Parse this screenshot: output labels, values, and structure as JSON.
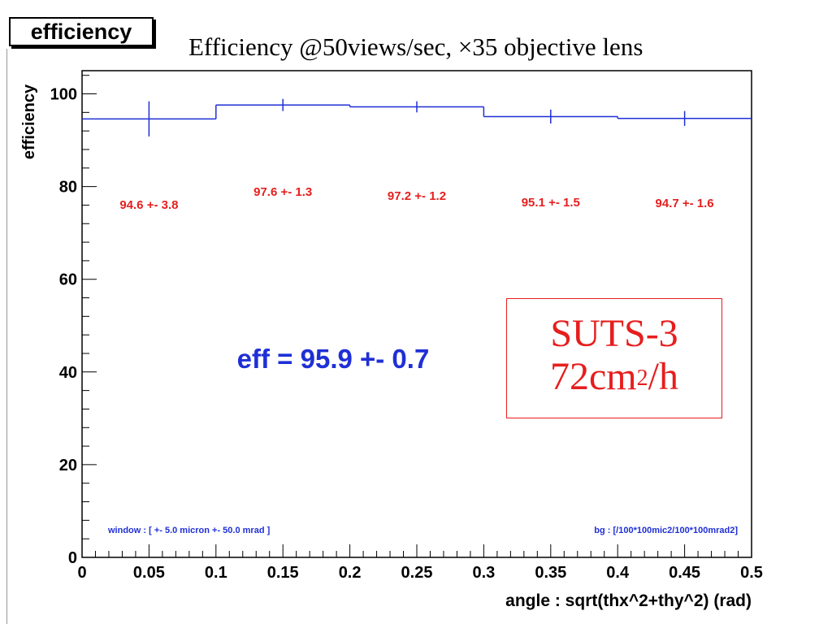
{
  "page": {
    "tag": "efficiency",
    "title": "Efficiency @50views/sec, ×35 objective lens"
  },
  "chart_data": {
    "type": "bar",
    "ylabel": "efficiency",
    "xlabel": "angle : sqrt(thx^2+thy^2) (rad)",
    "xlim": [
      0,
      0.5
    ],
    "ylim": [
      0,
      105
    ],
    "x_ticks": [
      "0",
      "0.05",
      "0.1",
      "0.15",
      "0.2",
      "0.25",
      "0.3",
      "0.35",
      "0.4",
      "0.45",
      "0.5"
    ],
    "y_ticks": [
      "0",
      "20",
      "40",
      "60",
      "80",
      "100"
    ],
    "bins": [
      {
        "x_low": 0.0,
        "x_high": 0.1,
        "x_center": 0.05,
        "value": 94.6,
        "error": 3.8,
        "label": "94.6 +- 3.8"
      },
      {
        "x_low": 0.1,
        "x_high": 0.2,
        "x_center": 0.15,
        "value": 97.6,
        "error": 1.3,
        "label": "97.6 +- 1.3"
      },
      {
        "x_low": 0.2,
        "x_high": 0.3,
        "x_center": 0.25,
        "value": 97.2,
        "error": 1.2,
        "label": "97.2 +- 1.2"
      },
      {
        "x_low": 0.3,
        "x_high": 0.4,
        "x_center": 0.35,
        "value": 95.1,
        "error": 1.5,
        "label": "95.1 +- 1.5"
      },
      {
        "x_low": 0.4,
        "x_high": 0.5,
        "x_center": 0.45,
        "value": 94.7,
        "error": 1.6,
        "label": "94.7 +- 1.6"
      }
    ],
    "summary": "eff = 95.9 +- 0.7",
    "window_note": "window : [ +- 5.0 micron  +- 50.0 mrad ]",
    "bg_note": "bg : [/100*100mic2/100*100mrad2]",
    "grid": false,
    "colors": {
      "histogram": "#1f2fd6",
      "labels": "#e61e1e",
      "summary": "#1f2fd6",
      "axis": "#000000"
    }
  },
  "annotation": {
    "name": "SUTS-3",
    "rate_value": "72cm",
    "rate_sup": "2",
    "rate_unit": "/h"
  }
}
